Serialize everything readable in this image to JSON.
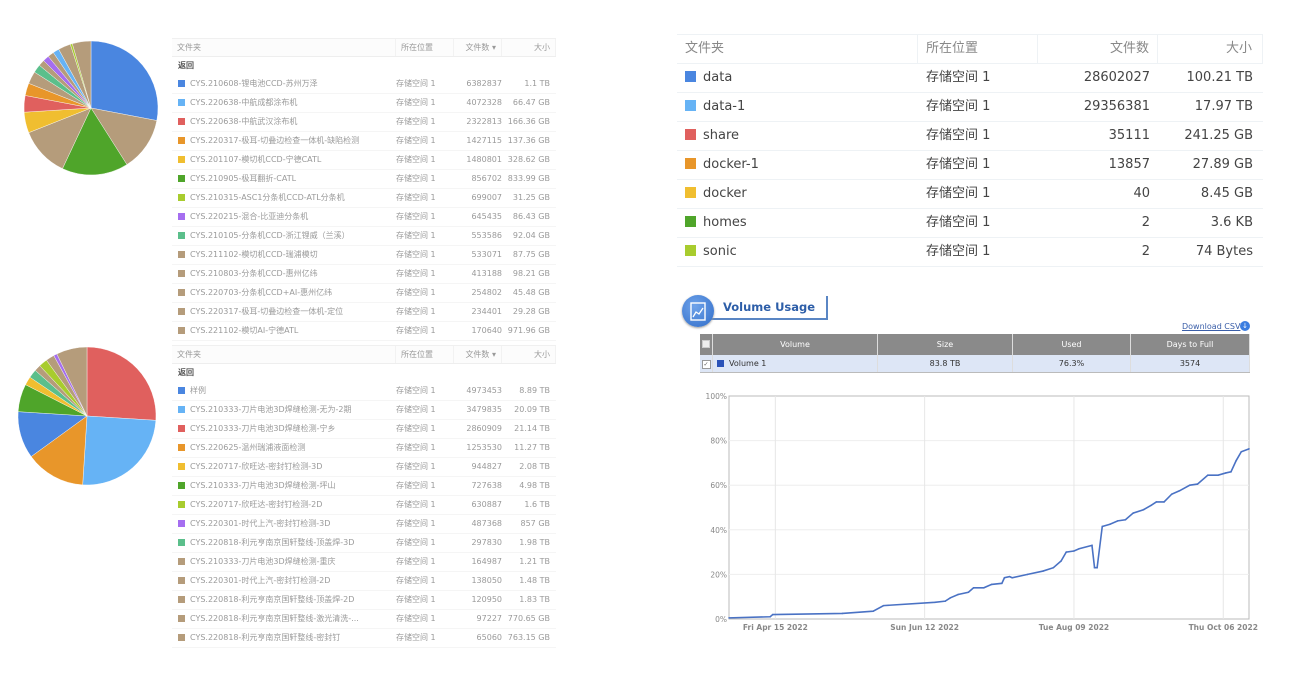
{
  "colors": {
    "blue": "#4a86e0",
    "light_blue": "#66b3f5",
    "red": "#e0605e",
    "orange": "#e8962a",
    "yellow": "#f0be30",
    "green": "#4fa52a",
    "lime": "#a8cc2e",
    "purple": "#a56ef0",
    "teal": "#5bbf8b",
    "tan": "#b59c7b",
    "accent": "#2d5ea8"
  },
  "left_top": {
    "headers": {
      "folder": "文件夹",
      "location": "所在位置",
      "count": "文件数 ▾",
      "size": "大小"
    },
    "back": "返回",
    "pie_shares": [
      {
        "color": "blue",
        "share": 0.28
      },
      {
        "color": "tan",
        "share": 0.13
      },
      {
        "color": "green",
        "share": 0.16
      },
      {
        "color": "tan",
        "share": 0.12
      },
      {
        "color": "yellow",
        "share": 0.05
      },
      {
        "color": "red",
        "share": 0.04
      },
      {
        "color": "orange",
        "share": 0.03
      },
      {
        "color": "tan",
        "share": 0.03
      },
      {
        "color": "teal",
        "share": 0.02
      },
      {
        "color": "tan",
        "share": 0.015
      },
      {
        "color": "purple",
        "share": 0.015
      },
      {
        "color": "tan",
        "share": 0.015
      },
      {
        "color": "light_blue",
        "share": 0.015
      },
      {
        "color": "tan",
        "share": 0.03
      },
      {
        "color": "lime",
        "share": 0.005
      },
      {
        "color": "tan",
        "share": 0.045
      }
    ],
    "rows": [
      {
        "color": "blue",
        "name": "CYS.210608-锂电池CCD-苏州万泽",
        "location": "存储空间 1",
        "count": "6382837",
        "size": "1.1 TB"
      },
      {
        "color": "light_blue",
        "name": "CYS.220638-中航成都涂布机",
        "location": "存储空间 1",
        "count": "4072328",
        "size": "66.47 GB"
      },
      {
        "color": "red",
        "name": "CYS.220638-中航武汉涂布机",
        "location": "存储空间 1",
        "count": "2322813",
        "size": "166.36 GB"
      },
      {
        "color": "orange",
        "name": "CYS.220317-极耳-切叠边检查一体机-缺陷检测",
        "location": "存储空间 1",
        "count": "1427115",
        "size": "137.36 GB"
      },
      {
        "color": "yellow",
        "name": "CYS.201107-模切机CCD-宁德CATL",
        "location": "存储空间 1",
        "count": "1480801",
        "size": "328.62 GB"
      },
      {
        "color": "green",
        "name": "CYS.210905-极耳翻折-CATL",
        "location": "存储空间 1",
        "count": "856702",
        "size": "833.99 GB"
      },
      {
        "color": "lime",
        "name": "CYS.210315-ASC1分条机CCD-ATL分条机",
        "location": "存储空间 1",
        "count": "699007",
        "size": "31.25 GB"
      },
      {
        "color": "purple",
        "name": "CYS.220215-混合-比亚迪分条机",
        "location": "存储空间 1",
        "count": "645435",
        "size": "86.43 GB"
      },
      {
        "color": "teal",
        "name": "CYS.210105-分条机CCD-浙江锂威（兰溪）",
        "location": "存储空间 1",
        "count": "553586",
        "size": "92.04 GB"
      },
      {
        "color": "tan",
        "name": "CYS.211102-模切机CCD-瑞浦模切",
        "location": "存储空间 1",
        "count": "533071",
        "size": "87.75 GB"
      },
      {
        "color": "tan",
        "name": "CYS.210803-分条机CCD-惠州亿纬",
        "location": "存储空间 1",
        "count": "413188",
        "size": "98.21 GB"
      },
      {
        "color": "tan",
        "name": "CYS.220703-分条机CCD+AI-惠州亿纬",
        "location": "存储空间 1",
        "count": "254802",
        "size": "45.48 GB"
      },
      {
        "color": "tan",
        "name": "CYS.220317-极耳-切叠边检查一体机-定位",
        "location": "存储空间 1",
        "count": "234401",
        "size": "29.28 GB"
      },
      {
        "color": "tan",
        "name": "CYS.221102-模切AI-宁德ATL",
        "location": "存储空间 1",
        "count": "170640",
        "size": "971.96 GB"
      }
    ]
  },
  "left_bottom": {
    "headers": {
      "folder": "文件夹",
      "location": "所在位置",
      "count": "文件数 ▾",
      "size": "大小"
    },
    "back": "返回",
    "pie_shares": [
      {
        "color": "red",
        "share": 0.26
      },
      {
        "color": "light_blue",
        "share": 0.25
      },
      {
        "color": "orange",
        "share": 0.14
      },
      {
        "color": "blue",
        "share": 0.11
      },
      {
        "color": "green",
        "share": 0.065
      },
      {
        "color": "yellow",
        "share": 0.02
      },
      {
        "color": "teal",
        "share": 0.02
      },
      {
        "color": "tan",
        "share": 0.015
      },
      {
        "color": "lime",
        "share": 0.02
      },
      {
        "color": "tan",
        "share": 0.02
      },
      {
        "color": "purple",
        "share": 0.008
      },
      {
        "color": "tan",
        "share": 0.072
      }
    ],
    "rows": [
      {
        "color": "blue",
        "name": "样例",
        "location": "存储空间 1",
        "count": "4973453",
        "size": "8.89 TB"
      },
      {
        "color": "light_blue",
        "name": "CYS.210333-刀片电池3D焊缝检测-无为-2期",
        "location": "存储空间 1",
        "count": "3479835",
        "size": "20.09 TB"
      },
      {
        "color": "red",
        "name": "CYS.210333-刀片电池3D焊缝检测-宁乡",
        "location": "存储空间 1",
        "count": "2860909",
        "size": "21.14 TB"
      },
      {
        "color": "orange",
        "name": "CYS.220625-温州瑞浦液面检测",
        "location": "存储空间 1",
        "count": "1253530",
        "size": "11.27 TB"
      },
      {
        "color": "yellow",
        "name": "CYS.220717-欣旺达-密封钉检测-3D",
        "location": "存储空间 1",
        "count": "944827",
        "size": "2.08 TB"
      },
      {
        "color": "green",
        "name": "CYS.210333-刀片电池3D焊缝检测-坪山",
        "location": "存储空间 1",
        "count": "727638",
        "size": "4.98 TB"
      },
      {
        "color": "lime",
        "name": "CYS.220717-欣旺达-密封钉检测-2D",
        "location": "存储空间 1",
        "count": "630887",
        "size": "1.6 TB"
      },
      {
        "color": "purple",
        "name": "CYS.220301-时代上汽-密封钉检测-3D",
        "location": "存储空间 1",
        "count": "487368",
        "size": "857 GB"
      },
      {
        "color": "teal",
        "name": "CYS.220818-利元亨南京国轩整线-顶盖焊-3D",
        "location": "存储空间 1",
        "count": "297830",
        "size": "1.98 TB"
      },
      {
        "color": "tan",
        "name": "CYS.210333-刀片电池3D焊缝检测-重庆",
        "location": "存储空间 1",
        "count": "164987",
        "size": "1.21 TB"
      },
      {
        "color": "tan",
        "name": "CYS.220301-时代上汽-密封钉检测-2D",
        "location": "存储空间 1",
        "count": "138050",
        "size": "1.48 TB"
      },
      {
        "color": "tan",
        "name": "CYS.220818-利元亨南京国轩整线-顶盖焊-2D",
        "location": "存储空间 1",
        "count": "120950",
        "size": "1.83 TB"
      },
      {
        "color": "tan",
        "name": "CYS.220818-利元亨南京国轩整线-激光清洗-...",
        "location": "存储空间 1",
        "count": "97227",
        "size": "770.65 GB"
      },
      {
        "color": "tan",
        "name": "CYS.220818-利元亨南京国轩整线-密封钉",
        "location": "存储空间 1",
        "count": "65060",
        "size": "763.15 GB"
      }
    ]
  },
  "shares_table": {
    "headers": {
      "folder": "文件夹",
      "location": "所在位置",
      "count": "文件数",
      "size": "大小"
    },
    "rows": [
      {
        "color": "blue",
        "name": "data",
        "location": "存储空间 1",
        "count": "28602027",
        "size": "100.21 TB"
      },
      {
        "color": "light_blue",
        "name": "data-1",
        "location": "存储空间 1",
        "count": "29356381",
        "size": "17.97 TB"
      },
      {
        "color": "red",
        "name": "share",
        "location": "存储空间 1",
        "count": "35111",
        "size": "241.25 GB"
      },
      {
        "color": "orange",
        "name": "docker-1",
        "location": "存储空间 1",
        "count": "13857",
        "size": "27.89 GB"
      },
      {
        "color": "yellow",
        "name": "docker",
        "location": "存储空间 1",
        "count": "40",
        "size": "8.45 GB"
      },
      {
        "color": "green",
        "name": "homes",
        "location": "存储空间 1",
        "count": "2",
        "size": "3.6 KB"
      },
      {
        "color": "lime",
        "name": "sonic",
        "location": "存储空间 1",
        "count": "2",
        "size": "74 Bytes"
      }
    ]
  },
  "volume_usage": {
    "title": "Volume Usage",
    "icon": "line-chart-icon",
    "download_csv": "Download CSV",
    "headers": {
      "volume": "Volume",
      "size": "Size",
      "used": "Used",
      "days_to_full": "Days to Full"
    },
    "row": {
      "checked": true,
      "volume": "Volume 1",
      "size": "83.8 TB",
      "used": "76.3%",
      "days_to_full": "3574",
      "color": "#2a52b8"
    }
  },
  "chart_data": {
    "type": "line",
    "title": "",
    "xlabel": "",
    "ylabel": "",
    "ylim": [
      0,
      100
    ],
    "xlim": [
      "2022-03-28",
      "2022-10-16"
    ],
    "y_ticks": [
      "0%",
      "20%",
      "40%",
      "60%",
      "80%",
      "100%"
    ],
    "x_ticks": [
      {
        "date": "2022-04-15",
        "label": "Fri Apr 15 2022"
      },
      {
        "date": "2022-06-12",
        "label": "Sun Jun 12 2022"
      },
      {
        "date": "2022-08-09",
        "label": "Tue Aug 09 2022"
      },
      {
        "date": "2022-10-06",
        "label": "Thu Oct 06 2022"
      }
    ],
    "grid": true,
    "line_color": "#4a72c4",
    "series": [
      {
        "x": [
          "2022-03-28",
          "2022-04-13",
          "2022-04-14",
          "2022-05-11",
          "2022-05-23",
          "2022-05-27",
          "2022-06-16",
          "2022-06-20",
          "2022-06-22",
          "2022-06-25",
          "2022-06-29",
          "2022-07-01",
          "2022-07-05",
          "2022-07-08",
          "2022-07-12",
          "2022-07-13",
          "2022-07-15",
          "2022-07-16",
          "2022-07-22",
          "2022-07-28",
          "2022-08-01",
          "2022-08-04",
          "2022-08-06",
          "2022-08-09",
          "2022-08-11",
          "2022-08-16",
          "2022-08-17",
          "2022-08-18",
          "2022-08-20",
          "2022-08-23",
          "2022-08-26",
          "2022-08-29",
          "2022-09-01",
          "2022-09-05",
          "2022-09-08",
          "2022-09-10",
          "2022-09-13",
          "2022-09-16",
          "2022-09-19",
          "2022-09-23",
          "2022-09-26",
          "2022-09-30",
          "2022-10-04",
          "2022-10-07",
          "2022-10-09",
          "2022-10-11",
          "2022-10-13",
          "2022-10-16"
        ],
        "y": [
          0.5,
          1,
          2,
          2.5,
          3.5,
          6,
          7.5,
          8,
          9.5,
          11,
          12,
          14,
          14,
          15.5,
          16,
          18.5,
          19,
          18.5,
          20,
          21.5,
          23,
          26,
          30,
          30.5,
          31.5,
          33,
          23,
          23,
          41.5,
          42.5,
          44,
          44.5,
          47.5,
          49,
          51,
          52.5,
          52.5,
          56,
          57.5,
          60,
          60.5,
          64.5,
          64.5,
          65.5,
          66,
          71,
          75,
          76.3
        ]
      }
    ]
  }
}
